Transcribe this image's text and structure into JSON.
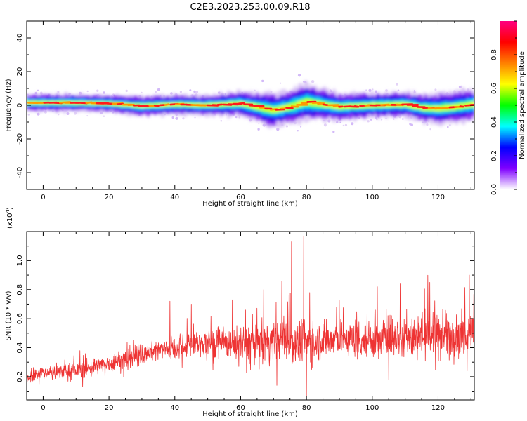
{
  "figure": {
    "title": "C2E3.2023.253.00.09.R18"
  },
  "chart_data": [
    {
      "id": "spectrogram",
      "type": "heatmap",
      "xlabel": "Height of straight line (km)",
      "ylabel": "Frequency (Hz)",
      "xlim": [
        -5,
        131
      ],
      "ylim": [
        -50,
        50
      ],
      "xticks": [
        0,
        20,
        40,
        60,
        80,
        100,
        120
      ],
      "yticks": [
        -40,
        -20,
        0,
        20,
        40
      ],
      "grid": false,
      "colorbar": {
        "label": "Normalized spectral amplitude",
        "range": [
          0,
          1
        ],
        "ticks": [
          0.0,
          0.2,
          0.4,
          0.6,
          0.8
        ],
        "colormap": [
          "#ffffff",
          "#7f00ff",
          "#0000ff",
          "#00ffff",
          "#00ff00",
          "#ffff00",
          "#ff8000",
          "#ff0000",
          "#ff0080"
        ]
      },
      "ridge": {
        "x": [
          -5,
          0,
          10,
          20,
          30,
          40,
          50,
          60,
          65,
          70,
          75,
          80,
          85,
          90,
          100,
          110,
          115,
          120,
          125,
          131
        ],
        "center_hz": [
          1.5,
          1.5,
          1.5,
          1.0,
          -0.5,
          0.5,
          0.0,
          1.0,
          -1.0,
          -3.0,
          -1.0,
          2.0,
          0.5,
          -1.0,
          0.0,
          0.5,
          -1.5,
          -2.0,
          -1.0,
          0.5
        ],
        "halfwidth_hz": [
          3.5,
          3.5,
          3.5,
          3.5,
          4.0,
          4.0,
          4.0,
          5.0,
          6.0,
          6.5,
          6.5,
          7.5,
          6.0,
          5.5,
          5.0,
          5.0,
          5.5,
          6.0,
          6.0,
          6.0
        ]
      }
    },
    {
      "id": "snr",
      "type": "line",
      "xlabel": "Height of straight line (km)",
      "ylabel": "SNR (10 * v/v)",
      "yunit_label": "(x10",
      "yunit_exp": "4",
      "yunit_close": ")",
      "xlim": [
        -5,
        131
      ],
      "ylim": [
        0.04,
        1.2
      ],
      "xticks": [
        0,
        20,
        40,
        60,
        80,
        100,
        120
      ],
      "yticks": [
        0.2,
        0.4,
        0.6,
        0.8,
        1.0
      ],
      "grid": false,
      "color": "#ee3333",
      "trend": {
        "x": [
          -5,
          0,
          10,
          20,
          30,
          40,
          50,
          60,
          70,
          80,
          90,
          100,
          110,
          120,
          131
        ],
        "y": [
          0.2,
          0.23,
          0.24,
          0.29,
          0.36,
          0.41,
          0.43,
          0.42,
          0.45,
          0.44,
          0.46,
          0.46,
          0.48,
          0.49,
          0.5
        ],
        "spread": [
          0.025,
          0.03,
          0.035,
          0.04,
          0.045,
          0.05,
          0.06,
          0.075,
          0.09,
          0.09,
          0.08,
          0.085,
          0.09,
          0.1,
          0.1
        ]
      },
      "peaks": [
        {
          "x": 11.2,
          "y": 0.38
        },
        {
          "x": 38.5,
          "y": 0.72
        },
        {
          "x": 45.0,
          "y": 0.7
        },
        {
          "x": 57.5,
          "y": 0.73
        },
        {
          "x": 61.5,
          "y": 0.66
        },
        {
          "x": 67.0,
          "y": 0.8
        },
        {
          "x": 72.5,
          "y": 0.86
        },
        {
          "x": 75.5,
          "y": 1.13
        },
        {
          "x": 79.2,
          "y": 1.17
        },
        {
          "x": 81.0,
          "y": 0.78
        },
        {
          "x": 90.0,
          "y": 0.73
        },
        {
          "x": 101.5,
          "y": 0.82
        },
        {
          "x": 108.5,
          "y": 0.84
        },
        {
          "x": 117.5,
          "y": 0.85
        },
        {
          "x": 129.5,
          "y": 0.9
        }
      ],
      "dips": [
        {
          "x": 12.0,
          "y": 0.13
        },
        {
          "x": 71.0,
          "y": 0.14
        },
        {
          "x": 80.0,
          "y": 0.05
        },
        {
          "x": 105.0,
          "y": 0.18
        },
        {
          "x": 128.8,
          "y": 0.24
        }
      ]
    }
  ]
}
